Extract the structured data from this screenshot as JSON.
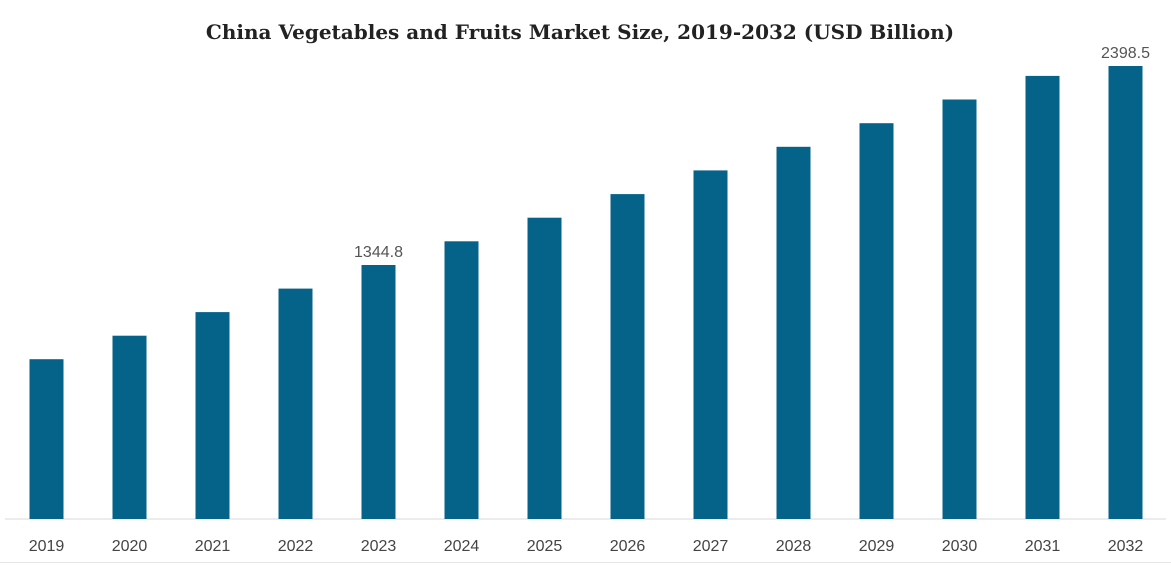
{
  "chart_data": {
    "type": "bar",
    "title": "China Vegetables and Fruits Market Size, 2019-2032 (USD Billion)",
    "xlabel": "",
    "ylabel": "",
    "categories": [
      "2019",
      "2020",
      "2021",
      "2022",
      "2023",
      "2024",
      "2025",
      "2026",
      "2027",
      "2028",
      "2029",
      "2030",
      "2031",
      "2032"
    ],
    "values": [
      846.0,
      970.6,
      1095.3,
      1220.0,
      1344.8,
      1470.1,
      1595.2,
      1720.3,
      1845.5,
      1970.6,
      2095.8,
      2220.9,
      2346.0,
      2398.5
    ],
    "data_labels": [
      {
        "category": "2023",
        "label": "1344.8"
      },
      {
        "category": "2032",
        "label": "2398.5"
      }
    ],
    "ylim": [
      0,
      2398.5
    ],
    "grid": false,
    "legend": "none",
    "bar_color": "#05638a"
  }
}
